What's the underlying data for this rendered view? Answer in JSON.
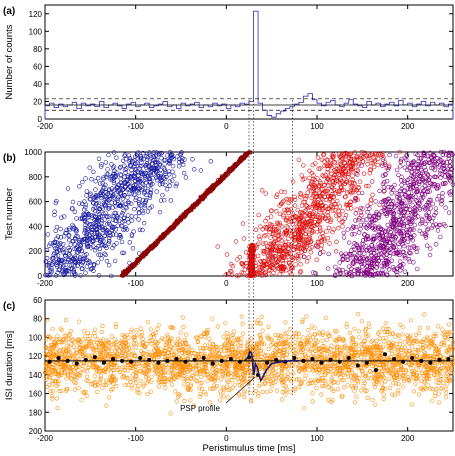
{
  "chart_data": [
    {
      "panel": "(a)",
      "type": "bar",
      "style": "step histogram, blue outline",
      "ylabel": "Number of counts",
      "xlim": [
        -200,
        250
      ],
      "ylim": [
        0,
        130
      ],
      "xticks": [
        -200,
        -100,
        0,
        100,
        200
      ],
      "yticks": [
        0,
        20,
        40,
        60,
        80,
        100,
        120
      ],
      "mean_line": 16,
      "dashed_lines": [
        10,
        23
      ],
      "x": [
        -200,
        -195,
        -190,
        -185,
        -180,
        -175,
        -170,
        -165,
        -160,
        -155,
        -150,
        -145,
        -140,
        -135,
        -130,
        -125,
        -120,
        -115,
        -110,
        -105,
        -100,
        -95,
        -90,
        -85,
        -80,
        -75,
        -70,
        -65,
        -60,
        -55,
        -50,
        -45,
        -40,
        -35,
        -30,
        -25,
        -20,
        -15,
        -10,
        -5,
        0,
        5,
        10,
        15,
        20,
        25,
        30,
        35,
        40,
        45,
        50,
        55,
        60,
        65,
        70,
        75,
        80,
        85,
        90,
        95,
        100,
        105,
        110,
        115,
        120,
        125,
        130,
        135,
        140,
        145,
        150,
        155,
        160,
        165,
        170,
        175,
        180,
        185,
        190,
        195,
        200,
        205,
        210,
        215,
        220,
        225,
        230,
        235,
        240,
        245
      ],
      "values": [
        15,
        18,
        13,
        17,
        14,
        16,
        19,
        12,
        18,
        15,
        17,
        14,
        20,
        13,
        16,
        18,
        15,
        12,
        17,
        19,
        14,
        16,
        18,
        13,
        15,
        17,
        20,
        14,
        16,
        12,
        18,
        15,
        17,
        19,
        13,
        16,
        14,
        18,
        15,
        17,
        12,
        16,
        14,
        18,
        17,
        20,
        123,
        18,
        10,
        4,
        2,
        6,
        9,
        12,
        14,
        17,
        19,
        26,
        29,
        22,
        18,
        15,
        19,
        21,
        16,
        14,
        18,
        22,
        17,
        15,
        13,
        20,
        16,
        18,
        14,
        17,
        19,
        15,
        21,
        16,
        18,
        14,
        17,
        20,
        15,
        19,
        16,
        18,
        14,
        17
      ]
    },
    {
      "panel": "(b)",
      "type": "scatter",
      "ylabel": "Test number",
      "xlim": [
        -200,
        250
      ],
      "ylim": [
        0,
        1000
      ],
      "xticks": [
        -200,
        -100,
        0,
        100,
        200
      ],
      "yticks": [
        0,
        200,
        400,
        600,
        800,
        1000
      ],
      "series": [
        {
          "color": "#1a1aa0",
          "marker": "circle",
          "band": {
            "x_at_test0": -190,
            "x_at_test1000": -75,
            "spread": 42
          }
        },
        {
          "color": "#8b0000",
          "marker": "circle",
          "band": {
            "x_at_test0": -115,
            "x_at_test1000": 25,
            "spread": 2
          }
        },
        {
          "color": "#e01010",
          "marker": "circle",
          "band": {
            "x_at_test0": 28,
            "x_at_test1000": 28,
            "spread": 2,
            "test_max": 250
          }
        },
        {
          "color": "#e01010",
          "marker": "circle",
          "band": {
            "x_at_test0": 40,
            "x_at_test1000": 145,
            "spread": 40
          }
        },
        {
          "color": "#800080",
          "marker": "circle",
          "band": {
            "x_at_test0": 150,
            "x_at_test1000": 235,
            "spread": 45
          }
        }
      ],
      "vertical_dotted": [
        25,
        30,
        73
      ]
    },
    {
      "panel": "(c)",
      "type": "scatter",
      "ylabel": "ISI duration [ms]",
      "xlabel": "Peristimulus time [ms]",
      "xlim": [
        -200,
        250
      ],
      "ylim": [
        200,
        60
      ],
      "xticks": [
        -200,
        -100,
        0,
        100,
        200
      ],
      "yticks": [
        60,
        80,
        100,
        120,
        140,
        160,
        180,
        200
      ],
      "baseline": 125,
      "scatter_color": "#ff8c00",
      "mean_points": {
        "x": [
          -195,
          -185,
          -175,
          -165,
          -155,
          -145,
          -135,
          -125,
          -115,
          -105,
          -95,
          -85,
          -75,
          -65,
          -55,
          -45,
          -35,
          -25,
          -15,
          -5,
          5,
          15,
          25,
          35,
          45,
          55,
          65,
          75,
          85,
          95,
          105,
          115,
          125,
          135,
          145,
          155,
          165,
          175,
          185,
          195,
          205,
          215,
          225,
          235,
          245
        ],
        "values": [
          126,
          122,
          125,
          128,
          124,
          121,
          127,
          123,
          125,
          126,
          122,
          124,
          127,
          125,
          123,
          126,
          124,
          122,
          128,
          125,
          123,
          126,
          121,
          140,
          127,
          124,
          126,
          122,
          125,
          123,
          127,
          124,
          126,
          122,
          130,
          127,
          135,
          118,
          123,
          126,
          122,
          125,
          127,
          124,
          123
        ]
      },
      "psp_profile": {
        "x": [
          20,
          24,
          26,
          28,
          29,
          30,
          31,
          32,
          34,
          36,
          38,
          40,
          44,
          50,
          60,
          70,
          80
        ],
        "values": [
          125,
          121,
          115,
          117,
          126,
          140,
          136,
          128,
          132,
          140,
          146,
          143,
          135,
          128,
          126,
          125,
          125
        ]
      },
      "annotation": "PSP profile"
    }
  ]
}
